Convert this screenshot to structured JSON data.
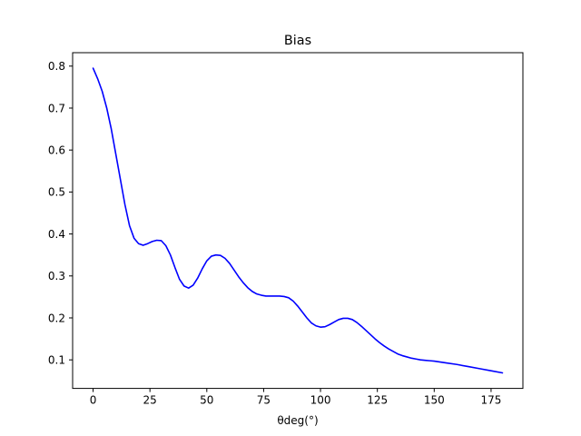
{
  "chart_data": {
    "type": "line",
    "title": "Bias",
    "xlabel": "θdeg(°)",
    "ylabel": "",
    "xlim": [
      -9,
      189
    ],
    "ylim": [
      0.032,
      0.832
    ],
    "x_ticks": [
      0,
      25,
      50,
      75,
      100,
      125,
      150,
      175
    ],
    "x_tick_labels": [
      "0",
      "25",
      "50",
      "75",
      "100",
      "125",
      "150",
      "175"
    ],
    "y_ticks": [
      0.1,
      0.2,
      0.3,
      0.4,
      0.5,
      0.6,
      0.7,
      0.8
    ],
    "y_tick_labels": [
      "0.1",
      "0.2",
      "0.3",
      "0.4",
      "0.5",
      "0.6",
      "0.7",
      "0.8"
    ],
    "grid": false,
    "legend": "none",
    "series": [
      {
        "color": "#0000ff",
        "x": [
          0,
          2,
          4,
          6,
          8,
          10,
          12,
          14,
          16,
          18,
          20,
          22,
          24,
          26,
          28,
          30,
          32,
          34,
          36,
          38,
          40,
          42,
          44,
          46,
          48,
          50,
          52,
          54,
          56,
          58,
          60,
          62,
          64,
          66,
          68,
          70,
          72,
          74,
          76,
          78,
          80,
          82,
          84,
          86,
          88,
          90,
          92,
          94,
          96,
          98,
          100,
          102,
          104,
          106,
          108,
          110,
          112,
          114,
          116,
          118,
          120,
          122,
          124,
          126,
          128,
          130,
          132,
          134,
          136,
          138,
          140,
          142,
          144,
          146,
          148,
          150,
          155,
          160,
          165,
          170,
          175,
          180
        ],
        "y": [
          0.795,
          0.77,
          0.74,
          0.7,
          0.65,
          0.59,
          0.53,
          0.47,
          0.42,
          0.39,
          0.377,
          0.373,
          0.377,
          0.382,
          0.385,
          0.384,
          0.372,
          0.35,
          0.32,
          0.292,
          0.276,
          0.271,
          0.278,
          0.295,
          0.317,
          0.336,
          0.347,
          0.35,
          0.349,
          0.342,
          0.33,
          0.314,
          0.298,
          0.284,
          0.272,
          0.263,
          0.257,
          0.254,
          0.252,
          0.252,
          0.252,
          0.252,
          0.251,
          0.248,
          0.24,
          0.228,
          0.214,
          0.2,
          0.188,
          0.181,
          0.178,
          0.179,
          0.184,
          0.19,
          0.196,
          0.199,
          0.199,
          0.196,
          0.189,
          0.18,
          0.17,
          0.16,
          0.15,
          0.141,
          0.133,
          0.126,
          0.12,
          0.114,
          0.11,
          0.107,
          0.104,
          0.102,
          0.1,
          0.099,
          0.098,
          0.097,
          0.093,
          0.089,
          0.084,
          0.079,
          0.074,
          0.069
        ]
      }
    ]
  }
}
